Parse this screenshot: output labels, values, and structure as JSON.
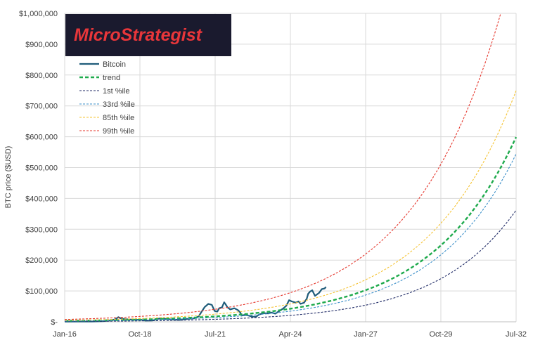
{
  "chart_data": {
    "type": "line",
    "title": "",
    "ylabel": "BTC price ($USD)",
    "xlabel": "",
    "logo": "MicroStrategist",
    "x_ticks": [
      {
        "label": "Jan-16",
        "t": 2016.0
      },
      {
        "label": "Oct-18",
        "t": 2018.75
      },
      {
        "label": "Jul-21",
        "t": 2021.5
      },
      {
        "label": "Apr-24",
        "t": 2024.25
      },
      {
        "label": "Jan-27",
        "t": 2027.0
      },
      {
        "label": "Oct-29",
        "t": 2029.75
      },
      {
        "label": "Jul-32",
        "t": 2032.5
      }
    ],
    "xlim": [
      2016.0,
      2032.5
    ],
    "ylim": [
      0,
      1000000
    ],
    "y_ticks": [
      {
        "label": "$-",
        "v": 0
      },
      {
        "label": "$100,000",
        "v": 100000
      },
      {
        "label": "$200,000",
        "v": 200000
      },
      {
        "label": "$300,000",
        "v": 300000
      },
      {
        "label": "$400,000",
        "v": 400000
      },
      {
        "label": "$500,000",
        "v": 500000
      },
      {
        "label": "$600,000",
        "v": 600000
      },
      {
        "label": "$700,000",
        "v": 700000
      },
      {
        "label": "$800,000",
        "v": 800000
      },
      {
        "label": "$900,000",
        "v": 900000
      },
      {
        "label": "$1,000,000",
        "v": 1000000
      }
    ],
    "grid": true,
    "legend_position": "top-left",
    "series": [
      {
        "name": "Bitcoin",
        "color": "#1f5c7a",
        "style": "solid",
        "points": [
          [
            2016.0,
            430
          ],
          [
            2016.5,
            650
          ],
          [
            2017.0,
            1000
          ],
          [
            2017.4,
            2000
          ],
          [
            2017.7,
            4500
          ],
          [
            2017.85,
            8000
          ],
          [
            2017.96,
            15000
          ],
          [
            2018.08,
            10000
          ],
          [
            2018.3,
            8000
          ],
          [
            2018.5,
            6500
          ],
          [
            2018.8,
            6300
          ],
          [
            2018.95,
            3800
          ],
          [
            2019.2,
            4000
          ],
          [
            2019.45,
            10500
          ],
          [
            2019.7,
            9000
          ],
          [
            2019.95,
            7200
          ],
          [
            2020.2,
            6000
          ],
          [
            2020.5,
            9500
          ],
          [
            2020.75,
            11500
          ],
          [
            2020.9,
            18000
          ],
          [
            2021.0,
            32000
          ],
          [
            2021.12,
            48000
          ],
          [
            2021.25,
            58000
          ],
          [
            2021.38,
            55000
          ],
          [
            2021.48,
            35000
          ],
          [
            2021.58,
            33000
          ],
          [
            2021.65,
            44000
          ],
          [
            2021.75,
            47000
          ],
          [
            2021.83,
            63000
          ],
          [
            2021.88,
            57000
          ],
          [
            2021.95,
            47000
          ],
          [
            2022.05,
            40000
          ],
          [
            2022.2,
            44000
          ],
          [
            2022.33,
            38000
          ],
          [
            2022.42,
            30000
          ],
          [
            2022.47,
            20000
          ],
          [
            2022.6,
            23000
          ],
          [
            2022.75,
            19500
          ],
          [
            2022.86,
            16500
          ],
          [
            2023.0,
            16800
          ],
          [
            2023.1,
            23000
          ],
          [
            2023.25,
            28000
          ],
          [
            2023.45,
            27000
          ],
          [
            2023.55,
            30000
          ],
          [
            2023.7,
            26500
          ],
          [
            2023.85,
            35000
          ],
          [
            2023.98,
            42500
          ],
          [
            2024.1,
            52000
          ],
          [
            2024.2,
            70000
          ],
          [
            2024.3,
            66000
          ],
          [
            2024.45,
            62000
          ],
          [
            2024.55,
            66000
          ],
          [
            2024.62,
            58000
          ],
          [
            2024.75,
            62000
          ],
          [
            2024.85,
            75000
          ],
          [
            2024.9,
            91000
          ],
          [
            2024.97,
            98000
          ],
          [
            2025.05,
            102000
          ],
          [
            2025.15,
            84000
          ],
          [
            2025.3,
            94000
          ],
          [
            2025.4,
            106000
          ],
          [
            2025.5,
            108000
          ],
          [
            2025.55,
            113000
          ]
        ]
      },
      {
        "name": "trend",
        "color": "#1eaa4c",
        "style": "dashed-thick",
        "x0": 2016.0,
        "y0": 3000,
        "growth": 0.321
      },
      {
        "name": "1st %ile",
        "color": "#1f2a66",
        "style": "dashed",
        "x0": 2016.0,
        "y0": 1200,
        "growth": 0.346
      },
      {
        "name": "33rd %ile",
        "color": "#3b8fc9",
        "style": "dashed",
        "x0": 2016.0,
        "y0": 2200,
        "growth": 0.334
      },
      {
        "name": "85th %ile",
        "color": "#f5c332",
        "style": "dashed",
        "x0": 2016.0,
        "y0": 4500,
        "growth": 0.31
      },
      {
        "name": "99th %ile",
        "color": "#e5352b",
        "style": "dashed",
        "x0": 2016.0,
        "y0": 7500,
        "growth": 0.307
      }
    ]
  }
}
